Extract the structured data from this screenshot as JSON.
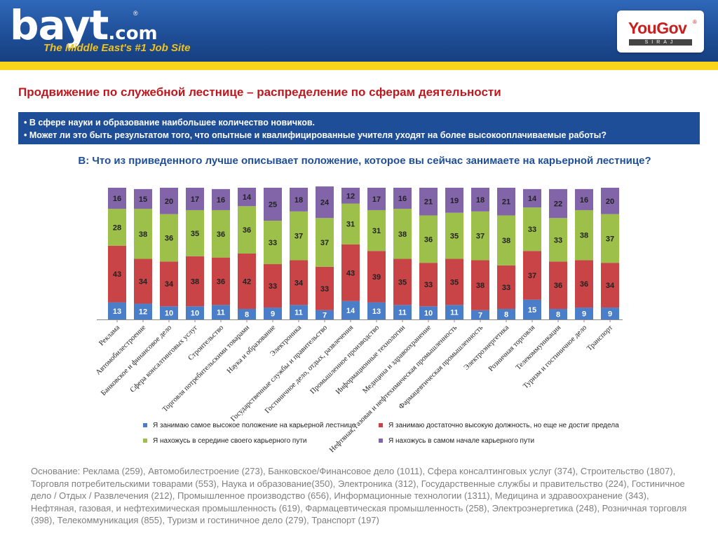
{
  "header": {
    "logo_text": "bayt",
    "logo_suffix": ".com",
    "logo_reg": "®",
    "tagline": "The Middle East's #1 Job Site",
    "partner_logo": "YouGov",
    "partner_reg": "®",
    "partner_sub": "SIRAJ"
  },
  "slide": {
    "title": "Продвижение по служебной лестнице – распределение по сферам деятельности",
    "bullets": [
      "• В сфере науки и образование наибольшее количество новичков.",
      "• Может ли это быть результатом того, что опытные и квалифицированные учителя уходят на более высокооплачиваемые работы?"
    ],
    "question": "В: Что из приведенного лучше описывает положение, которое вы сейчас занимаете на карьерной лестнице?",
    "footer": "Основание: Реклама (259), Автомобилестроение (273), Банковское/Финансовое дело (1011), Сфера консалтинговых услуг (374), Строительство (1807), Торговля потребительскими товарами (553), Наука и образование(350), Электроника (312), Государственные службы и правительство (224), Гостиничное дело / Отдых / Развлечения (212), Промышленное производство (656), Информационные технологии (1311), Медицина и здравоохранение (343), Нефтяная, газовая, и нефтехимическая промышленность (619), Фармацевтическая промышленность (258), Электроэнергетика (248), Розничная торговля (398), Телекоммуникация (855), Туризм и гостиничное дело (279), Транспорт (197)"
  },
  "colors": {
    "banner": "#1f4f98",
    "tagline": "#f2c21b",
    "title": "#c0171e",
    "series": [
      "#4a7ec8",
      "#c84446",
      "#9dc04a",
      "#8264a8"
    ]
  },
  "chart_data": {
    "type": "bar",
    "stacked": true,
    "percent": true,
    "categories": [
      "Реклама",
      "Автомобилестроение",
      "Банковское и финансовое дело",
      "Сфера консалтинговых услуг",
      "Строительство",
      "Торговля потребительскими товарами",
      "Наука и образование",
      "Электроника",
      "Государственные службы и правительство",
      "Гостиничное дело, отдых, развлечения",
      "Промышленное производство",
      "Информационные технологии",
      "Медицина и здравоохранение",
      "Нефтяная, газовая и нефтехимическая промышленность",
      "Фармацевтическая промышленность",
      "Электроэнергетика",
      "Розничная торговля",
      "Телекоммуникация",
      "Туризм и гостиничное дело",
      "Транспорт"
    ],
    "series": [
      {
        "name": "Я занимаю самое высокое положение на карьерной лестнице",
        "values": [
          13,
          12,
          10,
          10,
          11,
          8,
          9,
          11,
          7,
          14,
          13,
          11,
          10,
          11,
          7,
          8,
          15,
          8,
          9,
          9
        ]
      },
      {
        "name": "Я занимаю достаточно высокую должность, но еще не достиг предела",
        "values": [
          43,
          34,
          34,
          38,
          36,
          42,
          33,
          34,
          33,
          43,
          39,
          35,
          33,
          35,
          38,
          33,
          37,
          36,
          36,
          34
        ]
      },
      {
        "name": "Я нахожусь в середине своего карьерного пути",
        "values": [
          28,
          38,
          36,
          35,
          36,
          36,
          33,
          37,
          37,
          31,
          31,
          38,
          36,
          35,
          37,
          38,
          33,
          33,
          38,
          37
        ]
      },
      {
        "name": "Я нахожусь в самом начале карьерного пути",
        "values": [
          16,
          15,
          20,
          17,
          16,
          14,
          25,
          18,
          24,
          12,
          17,
          16,
          21,
          19,
          18,
          21,
          14,
          22,
          16,
          20
        ]
      }
    ],
    "ylim": [
      0,
      100
    ],
    "grid": false,
    "legend": "bottom"
  }
}
